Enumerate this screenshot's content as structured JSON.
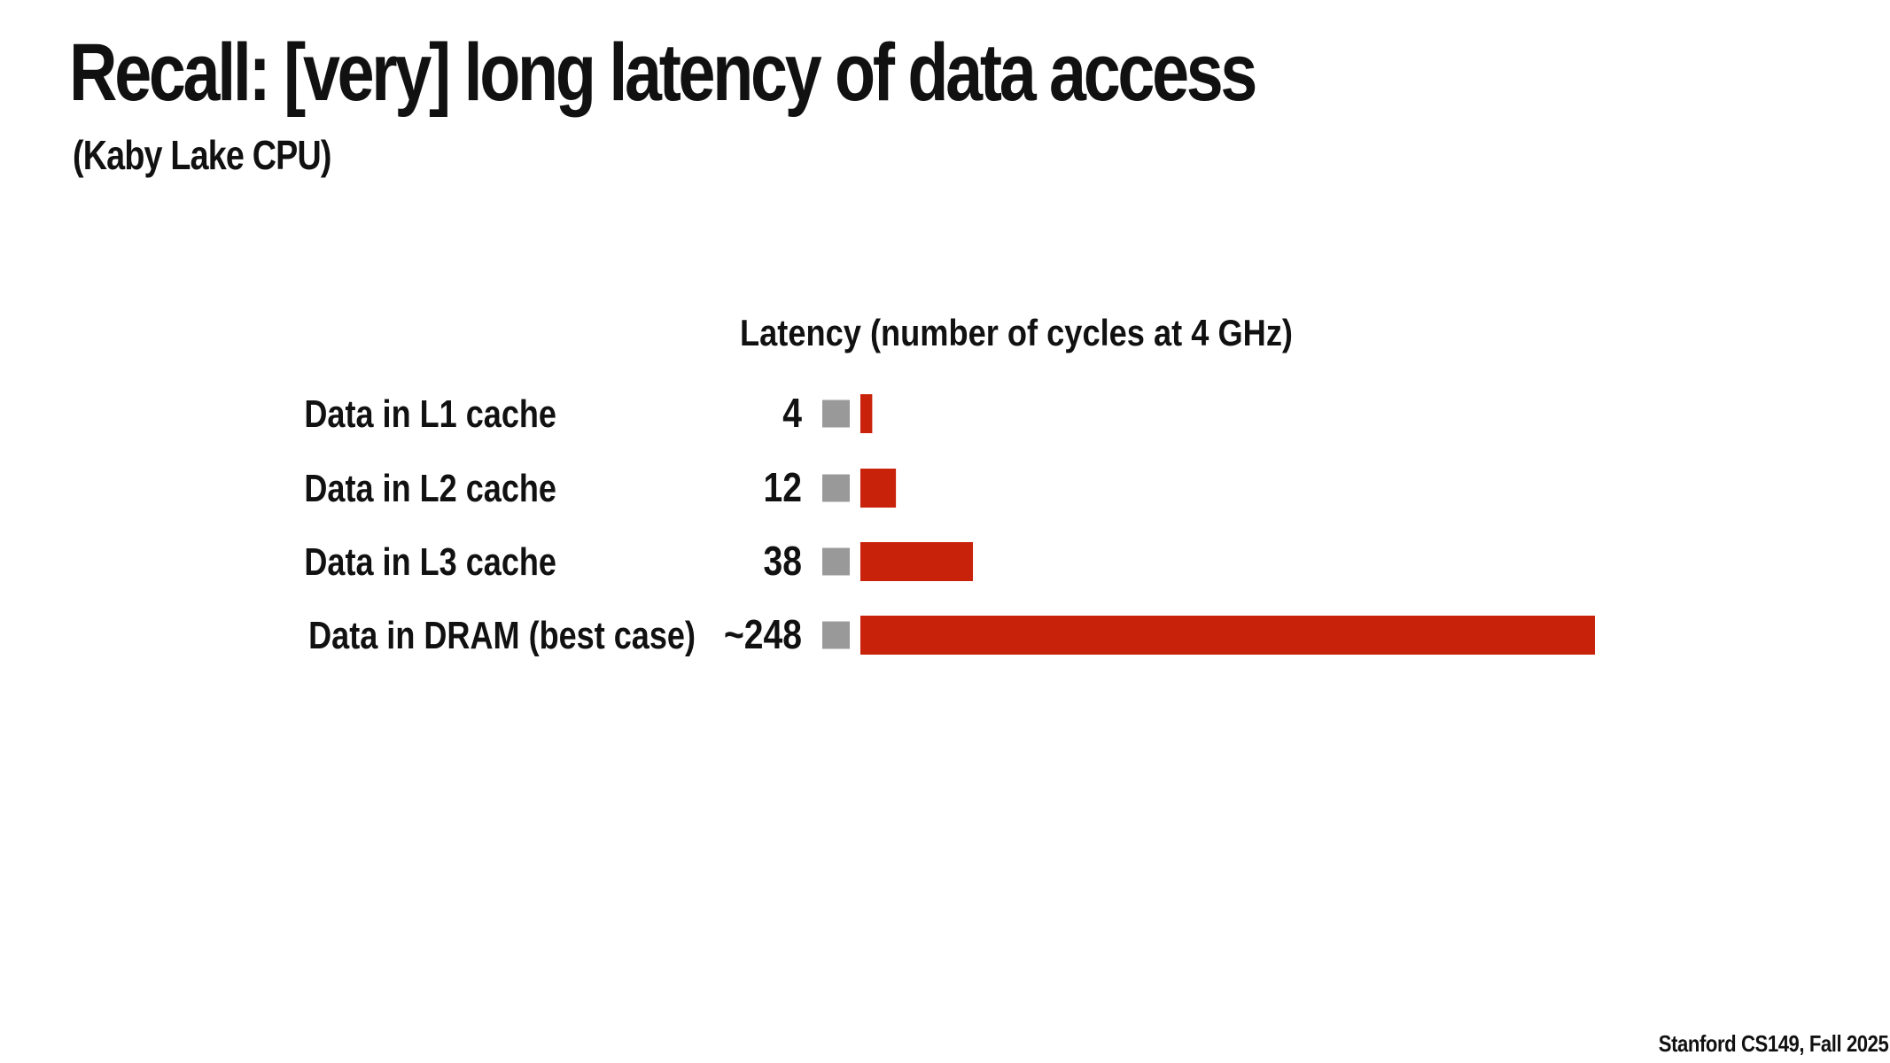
{
  "slide": {
    "title": "Recall: [very] long latency of data access",
    "subtitle": "(Kaby Lake CPU)",
    "footer": "Stanford CS149, Fall 2025"
  },
  "chart_data": {
    "type": "bar",
    "orientation": "horizontal",
    "title": "Latency (number of cycles at 4 GHz)",
    "categories": [
      "Data in L1 cache",
      "Data in L2 cache",
      "Data in L3 cache",
      "Data in DRAM (best case)"
    ],
    "value_labels": [
      "4",
      "12",
      "38",
      "~248"
    ],
    "values": [
      4,
      12,
      38,
      248
    ],
    "xlim": [
      0,
      248
    ],
    "grid": false,
    "legend": "none",
    "colors": {
      "bar": "#c8220b",
      "marker": "#999999"
    }
  }
}
